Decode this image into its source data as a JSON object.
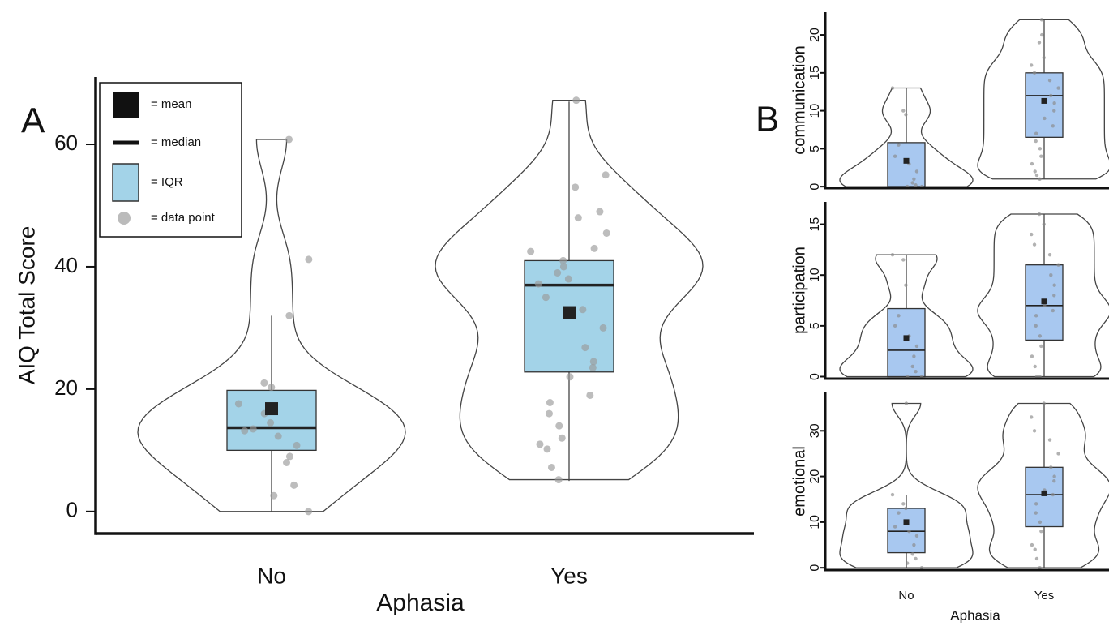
{
  "chart_data": [
    {
      "type": "violin",
      "panel_label": "A",
      "ylabel": "AIQ Total Score",
      "xlabel": "Aphasia",
      "categories": [
        "No",
        "Yes"
      ],
      "ylim": [
        -3.6,
        71
      ],
      "yticks": [
        0,
        20,
        40,
        60
      ],
      "box_color": "#a3d3e8",
      "point_color": "#999999",
      "legend": [
        "= mean",
        "= median",
        "= IQR",
        "= data point"
      ],
      "groups": [
        {
          "whisker": [
            0,
            32
          ],
          "q1": 10,
          "median": 13.7,
          "q3": 19.8,
          "mean": 16.8,
          "points": [
            0,
            2.6,
            4.3,
            8,
            9,
            10.8,
            12.3,
            13.2,
            13.5,
            14.5,
            16,
            17.6,
            20.3,
            21,
            32,
            41.2,
            60.8
          ]
        },
        {
          "whisker": [
            5,
            67
          ],
          "q1": 22.8,
          "median": 37,
          "q3": 41,
          "mean": 32.5,
          "points": [
            5.2,
            7.2,
            10.2,
            11,
            12,
            14,
            16,
            17.8,
            19,
            22,
            23.5,
            24.5,
            26.8,
            30,
            33,
            35,
            37.2,
            38,
            39,
            40,
            41,
            42.5,
            43,
            45.5,
            48,
            49,
            53,
            55,
            67.2
          ]
        }
      ]
    },
    {
      "type": "violin",
      "panel_label": "B",
      "ylabel": "communication",
      "ylim": [
        -0.2,
        23
      ],
      "yticks": [
        0,
        5,
        10,
        15,
        20
      ],
      "box_color": "#a8c8f0",
      "point_color": "#888888",
      "groups": [
        {
          "whisker": [
            0,
            13
          ],
          "q1": 0,
          "median": 0,
          "q3": 5.8,
          "mean": 3.4,
          "points": [
            0,
            0,
            0.2,
            0.5,
            1,
            2,
            3,
            4,
            5.5,
            9.5,
            10,
            13
          ]
        },
        {
          "whisker": [
            1,
            22
          ],
          "q1": 6.5,
          "median": 12,
          "q3": 15,
          "mean": 11.3,
          "points": [
            1,
            1.5,
            2,
            3,
            4,
            5,
            6,
            7,
            8,
            9,
            10,
            11,
            12,
            13,
            14,
            15,
            16,
            17,
            19,
            20,
            22
          ]
        }
      ]
    },
    {
      "type": "violin",
      "ylabel": "participation",
      "ylim": [
        -0.2,
        17.2
      ],
      "yticks": [
        0,
        5,
        10,
        15
      ],
      "box_color": "#a8c8f0",
      "point_color": "#888888",
      "groups": [
        {
          "whisker": [
            0,
            12
          ],
          "q1": 0,
          "median": 2.6,
          "q3": 6.7,
          "mean": 3.8,
          "points": [
            0,
            0,
            0.5,
            1,
            2,
            3,
            4,
            5,
            6,
            9,
            11.5,
            12
          ]
        },
        {
          "whisker": [
            0,
            16
          ],
          "q1": 3.6,
          "median": 7,
          "q3": 11,
          "mean": 7.4,
          "points": [
            0,
            0,
            1,
            2,
            3,
            4,
            5,
            6,
            6.5,
            7,
            8,
            9,
            10,
            11,
            12,
            13,
            14,
            15,
            16
          ]
        }
      ]
    },
    {
      "type": "violin",
      "ylabel": "emotional",
      "xlabel": "Aphasia",
      "categories": [
        "No",
        "Yes"
      ],
      "ylim": [
        -0.5,
        38.4
      ],
      "yticks": [
        0,
        10,
        20,
        30
      ],
      "box_color": "#a8c8f0",
      "point_color": "#888888",
      "groups": [
        {
          "whisker": [
            0,
            16
          ],
          "q1": 3.3,
          "median": 8,
          "q3": 13,
          "mean": 10,
          "points": [
            0,
            1,
            2,
            3,
            5,
            7,
            8,
            9,
            12,
            13,
            14,
            16,
            36
          ]
        },
        {
          "whisker": [
            0,
            36
          ],
          "q1": 9,
          "median": 16,
          "q3": 22,
          "mean": 16.3,
          "points": [
            0,
            2,
            4,
            5,
            8,
            10,
            12,
            14,
            16,
            17,
            19,
            20,
            22,
            25,
            28,
            30,
            33,
            36
          ]
        }
      ]
    }
  ]
}
